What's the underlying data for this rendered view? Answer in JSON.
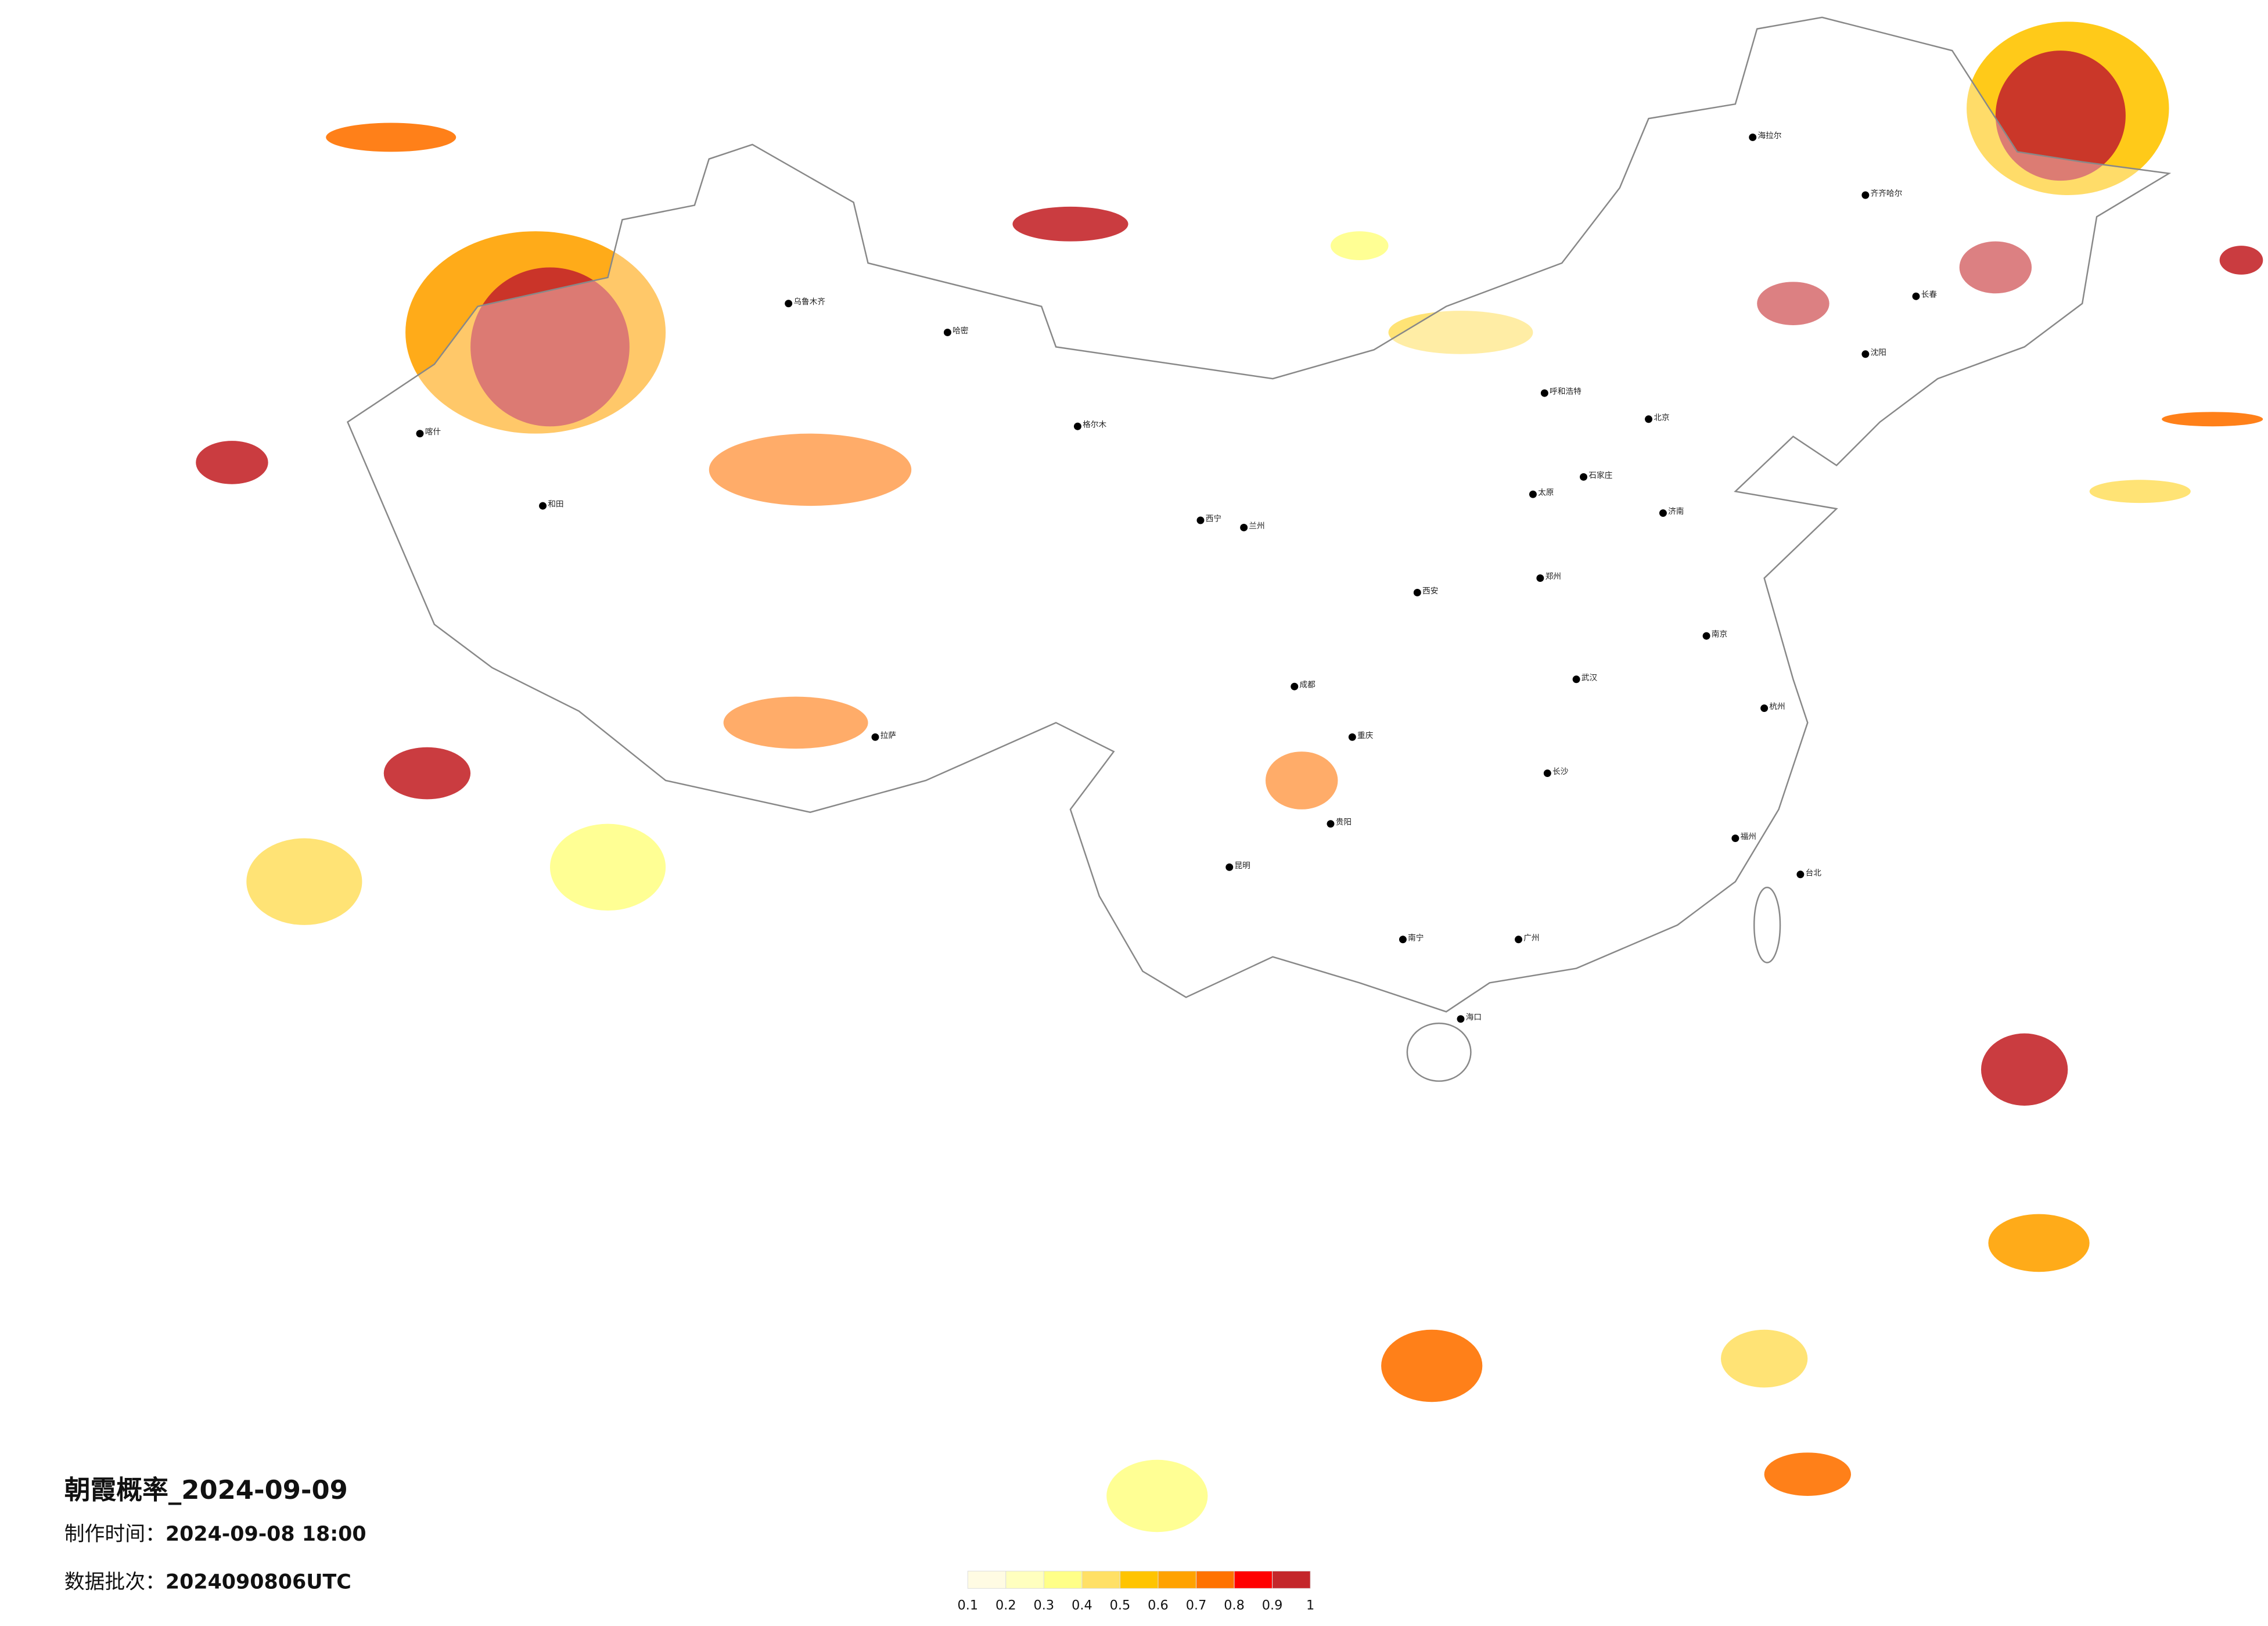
{
  "map": {
    "cities": [
      "海拉尔",
      "齐齐哈尔",
      "长春",
      "呼和浩特",
      "北京",
      "石家庄",
      "太原",
      "郑州",
      "西安",
      "兰州",
      "西宁",
      "成都",
      "重庆",
      "贵阳",
      "昆明",
      "南宁",
      "广州",
      "长沙",
      "武汉",
      "南京",
      "济南",
      "拉萨",
      "乌鲁木齐",
      "和田",
      "喀什",
      "哈密",
      "格尔木",
      "海口",
      "台北",
      "福州",
      "杭州",
      "沈阳"
    ],
    "colorbar": {
      "ticks": [
        0.1,
        0.2,
        0.3,
        0.4,
        0.5,
        0.6,
        0.7,
        0.8,
        0.9,
        1
      ],
      "colors": [
        "#fffbe3",
        "#ffffbf",
        "#ffff88",
        "#ffe066",
        "#ffc400",
        "#ffa200",
        "#ff7200",
        "#ff0000",
        "#c4272b"
      ]
    }
  },
  "footer": {
    "title": "朝霞概率_2024-09-09",
    "made_label": "制作时间：",
    "made_value": "2024-09-08 18:00",
    "batch_label": "数据批次：",
    "batch_value": "2024090806UTC"
  }
}
